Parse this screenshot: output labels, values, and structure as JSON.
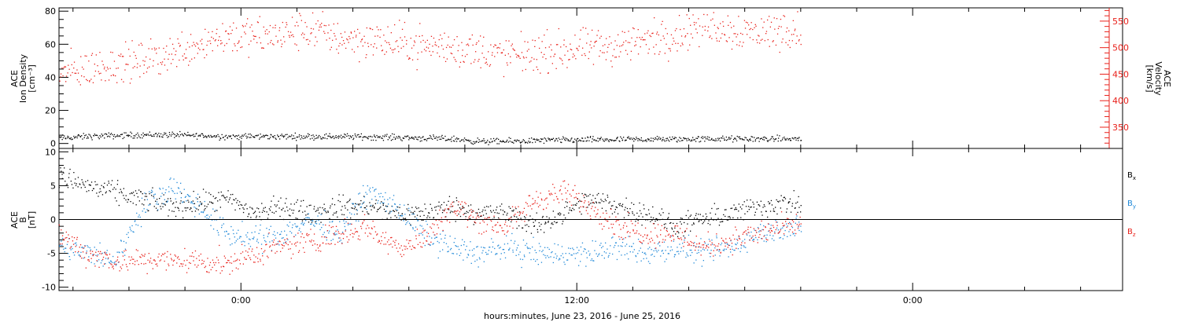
{
  "xaxis": {
    "title": "hours:minutes, June 23, 2016 - June 25, 2016",
    "range": [
      -6.5,
      31.5
    ],
    "ticks": [
      {
        "t": 0,
        "label": "0:00"
      },
      {
        "t": 12,
        "label": "12:00"
      },
      {
        "t": 24,
        "label": "0:00"
      }
    ],
    "minor_step": 2,
    "data_end": 20
  },
  "colors": {
    "black": "#000000",
    "red": "#e8201a",
    "blue": "#1e88d8",
    "axis_red": "#e8201a"
  },
  "chart_data": [
    {
      "type": "scatter",
      "id": "top",
      "left_axis": {
        "label_lines": [
          "ACE",
          "Ion Density",
          "[cm⁻³]"
        ],
        "ylim": [
          -3,
          82
        ],
        "ticks": [
          0,
          20,
          40,
          60,
          80
        ],
        "minor_step": 5
      },
      "right_axis": {
        "label_lines": [
          "ACE",
          "Velocity",
          "[km/s]"
        ],
        "ylim": [
          310,
          575
        ],
        "ticks": [
          350,
          400,
          450,
          500,
          550
        ],
        "minor_step": 10
      },
      "series": [
        {
          "color": "black",
          "axis": "left",
          "spread": 0.9,
          "points": [
            [
              -6.5,
              3.5
            ],
            [
              -5.5,
              4.5
            ],
            [
              -4.5,
              5
            ],
            [
              -3.5,
              5.5
            ],
            [
              -2.5,
              5.5
            ],
            [
              -1.5,
              5
            ],
            [
              -0.5,
              4.5
            ],
            [
              0.5,
              4.5
            ],
            [
              1.5,
              4.5
            ],
            [
              2.5,
              4.5
            ],
            [
              3.5,
              4.5
            ],
            [
              4.5,
              4.3
            ],
            [
              5.5,
              4
            ],
            [
              6.5,
              3.5
            ],
            [
              7.5,
              3
            ],
            [
              8.5,
              1.5
            ],
            [
              9.5,
              1.5
            ],
            [
              10.5,
              2
            ],
            [
              11.5,
              2.3
            ],
            [
              12.5,
              2.5
            ],
            [
              13.5,
              2.5
            ],
            [
              14.5,
              2.8
            ],
            [
              15.5,
              2.8
            ],
            [
              16.5,
              3
            ],
            [
              17.5,
              3
            ],
            [
              18.5,
              3
            ],
            [
              19.5,
              3
            ],
            [
              20,
              3
            ]
          ]
        },
        {
          "color": "red",
          "axis": "right",
          "spread": 18,
          "points": [
            [
              -6.5,
              450
            ],
            [
              -5.5,
              460
            ],
            [
              -4.5,
              470
            ],
            [
              -3.5,
              475
            ],
            [
              -2.5,
              490
            ],
            [
              -1.5,
              510
            ],
            [
              -0.5,
              525
            ],
            [
              0.5,
              520
            ],
            [
              1.5,
              525
            ],
            [
              2.5,
              535
            ],
            [
              3.5,
              520
            ],
            [
              4.5,
              515
            ],
            [
              5.5,
              510
            ],
            [
              6.5,
              505
            ],
            [
              7.5,
              500
            ],
            [
              8.5,
              495
            ],
            [
              9.5,
              485
            ],
            [
              10.5,
              490
            ],
            [
              11.5,
              495
            ],
            [
              12.5,
              500
            ],
            [
              13.5,
              505
            ],
            [
              14.5,
              515
            ],
            [
              15.5,
              525
            ],
            [
              16.5,
              545
            ],
            [
              17.5,
              535
            ],
            [
              18.5,
              530
            ],
            [
              19.5,
              535
            ],
            [
              20,
              530
            ]
          ]
        }
      ]
    },
    {
      "type": "scatter",
      "id": "bottom",
      "left_axis": {
        "label_lines": [
          "ACE",
          "B",
          "[nT]"
        ],
        "ylim": [
          -10.5,
          10.5
        ],
        "ticks": [
          -10,
          -5,
          0,
          5,
          10
        ],
        "minor_step": 1
      },
      "legend": [
        {
          "label": "B",
          "sub": "x",
          "color": "black"
        },
        {
          "label": "B",
          "sub": "y",
          "color": "blue"
        },
        {
          "label": "B",
          "sub": "z",
          "color": "red"
        }
      ],
      "series": [
        {
          "color": "black",
          "spread": 0.8,
          "points": [
            [
              -6.5,
              6.5
            ],
            [
              -5.5,
              5
            ],
            [
              -4.5,
              4
            ],
            [
              -3.5,
              3
            ],
            [
              -2.5,
              2
            ],
            [
              -1.5,
              2.5
            ],
            [
              -0.5,
              3
            ],
            [
              0.5,
              1
            ],
            [
              1.5,
              2
            ],
            [
              2.5,
              1
            ],
            [
              3.5,
              2
            ],
            [
              4.5,
              2
            ],
            [
              5.5,
              1
            ],
            [
              6.5,
              1
            ],
            [
              7.5,
              2
            ],
            [
              8.5,
              1
            ],
            [
              9.5,
              1
            ],
            [
              10.5,
              -1
            ],
            [
              11.5,
              1
            ],
            [
              12.5,
              3
            ],
            [
              13.5,
              2
            ],
            [
              14.5,
              1
            ],
            [
              15.5,
              -1
            ],
            [
              16.5,
              0
            ],
            [
              17.5,
              1
            ],
            [
              18.5,
              2
            ],
            [
              19.5,
              2.5
            ],
            [
              20,
              2
            ]
          ]
        },
        {
          "color": "blue",
          "spread": 0.9,
          "points": [
            [
              -6.5,
              -4
            ],
            [
              -5.5,
              -5
            ],
            [
              -4.5,
              -6
            ],
            [
              -3.5,
              2
            ],
            [
              -2.5,
              5
            ],
            [
              -1.5,
              2
            ],
            [
              -0.5,
              -2
            ],
            [
              0.5,
              -3
            ],
            [
              1.5,
              -2
            ],
            [
              2.5,
              0
            ],
            [
              3.5,
              -2
            ],
            [
              4.5,
              4
            ],
            [
              5.5,
              2
            ],
            [
              6.5,
              -2
            ],
            [
              7.5,
              -4
            ],
            [
              8.5,
              -5
            ],
            [
              9.5,
              -4
            ],
            [
              10.5,
              -5
            ],
            [
              11.5,
              -5
            ],
            [
              12.5,
              -5
            ],
            [
              13.5,
              -4
            ],
            [
              14.5,
              -5
            ],
            [
              15.5,
              -4
            ],
            [
              16.5,
              -5
            ],
            [
              17.5,
              -4
            ],
            [
              18.5,
              -2
            ],
            [
              19.5,
              -1
            ],
            [
              20,
              -1.5
            ]
          ]
        },
        {
          "color": "red",
          "spread": 0.9,
          "points": [
            [
              -6.5,
              -2
            ],
            [
              -5.5,
              -5
            ],
            [
              -4.5,
              -6
            ],
            [
              -3.5,
              -6
            ],
            [
              -2.5,
              -6
            ],
            [
              -1.5,
              -6
            ],
            [
              -0.5,
              -6.5
            ],
            [
              0.5,
              -5
            ],
            [
              1.5,
              -4
            ],
            [
              2.5,
              -3
            ],
            [
              3.5,
              -2
            ],
            [
              4.5,
              -1
            ],
            [
              5.5,
              -4
            ],
            [
              6.5,
              -3
            ],
            [
              7.5,
              2
            ],
            [
              8.5,
              0
            ],
            [
              9.5,
              -1
            ],
            [
              10.5,
              3
            ],
            [
              11.5,
              4
            ],
            [
              12.5,
              2
            ],
            [
              13.5,
              -1
            ],
            [
              14.5,
              -2
            ],
            [
              15.5,
              -2
            ],
            [
              16.5,
              -4
            ],
            [
              17.5,
              -3
            ],
            [
              18.5,
              -2
            ],
            [
              19.5,
              -1
            ],
            [
              20,
              -0.5
            ]
          ]
        }
      ]
    }
  ]
}
